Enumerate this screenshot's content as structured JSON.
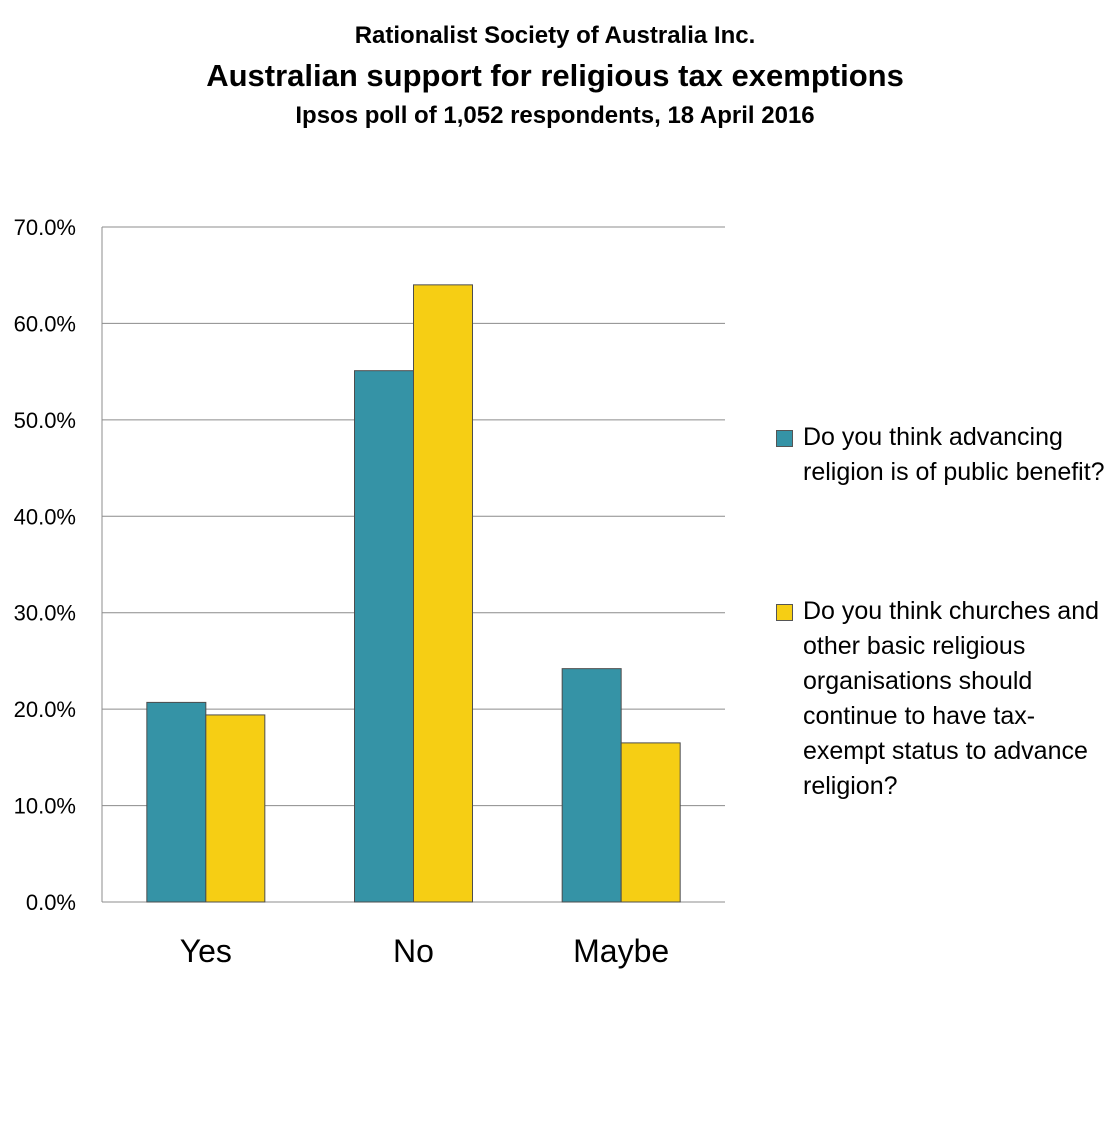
{
  "header": {
    "organisation": "Rationalist Society of Australia Inc.",
    "title": "Australian support for religious tax exemptions",
    "subtitle": "Ipsos poll of  1,052 respondents, 18 April 2016"
  },
  "chart_data": {
    "type": "bar",
    "title": "Australian support for religious tax exemptions",
    "subtitle": "Ipsos poll of  1,052 respondents, 18 April 2016",
    "categories": [
      "Yes",
      "No",
      "Maybe"
    ],
    "series": [
      {
        "name": "Do you think advancing religion is of public benefit?",
        "color": "#3593a6",
        "values": [
          20.7,
          55.1,
          24.2
        ]
      },
      {
        "name": "Do you think churches and other basic religious organisations should continue to have tax-exempt status to advance religion?",
        "color": "#f6ce14",
        "values": [
          19.4,
          64.0,
          16.5
        ]
      }
    ],
    "ylim": [
      0,
      70
    ],
    "yticks": [
      "0.0%",
      "10.0%",
      "20.0%",
      "30.0%",
      "40.0%",
      "50.0%",
      "60.0%",
      "70.0%"
    ],
    "grid": true,
    "legend_position": "right",
    "xlabel": "",
    "ylabel": ""
  }
}
